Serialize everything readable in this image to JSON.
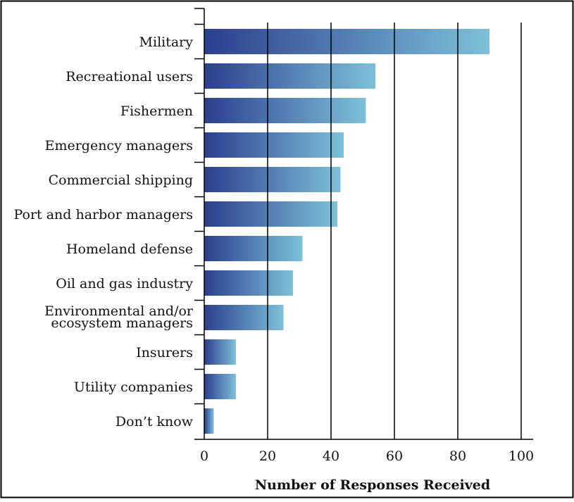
{
  "chart_data": {
    "type": "bar",
    "orientation": "horizontal",
    "categories": [
      [
        "Military"
      ],
      [
        "Recreational users"
      ],
      [
        "Fishermen"
      ],
      [
        "Emergency managers"
      ],
      [
        "Commercial shipping"
      ],
      [
        "Port and harbor managers"
      ],
      [
        "Homeland defense"
      ],
      [
        "Oil and gas industry"
      ],
      [
        "Environmental and/or",
        "ecosystem managers"
      ],
      [
        "Insurers"
      ],
      [
        "Utility companies"
      ],
      [
        "Don’t know"
      ]
    ],
    "values": [
      90,
      54,
      51,
      44,
      43,
      42,
      31,
      28,
      25,
      10,
      10,
      3
    ],
    "xlabel": "Number of Responses Received",
    "ylabel": "",
    "xlim": [
      0,
      100
    ],
    "xticks": [
      "0",
      "20",
      "40",
      "60",
      "80",
      "100"
    ],
    "grid": "vertical",
    "bar_gradient": [
      "#2b3f8f",
      "#7ec0d8"
    ],
    "frame_color": "#000000"
  }
}
